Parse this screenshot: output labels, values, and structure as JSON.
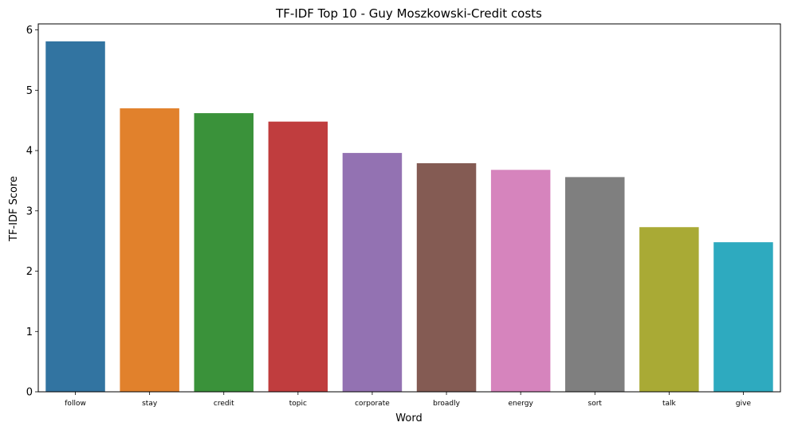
{
  "chart_data": {
    "type": "bar",
    "title": "TF-IDF Top 10 - Guy Moszkowski-Credit costs",
    "xlabel": "Word",
    "ylabel": "TF-IDF Score",
    "categories": [
      "follow",
      "stay",
      "credit",
      "topic",
      "corporate",
      "broadly",
      "energy",
      "sort",
      "talk",
      "give"
    ],
    "values": [
      5.81,
      4.7,
      4.62,
      4.48,
      3.96,
      3.79,
      3.68,
      3.56,
      2.73,
      2.48
    ],
    "colors": [
      "#3274a1",
      "#e1812c",
      "#3a923a",
      "#c03d3e",
      "#9372b2",
      "#845b53",
      "#d684bd",
      "#7f7f7f",
      "#a9aa35",
      "#2eaabf"
    ],
    "ylim": [
      0,
      6.1
    ],
    "yticks": [
      0,
      1,
      2,
      3,
      4,
      5,
      6
    ],
    "grid": false,
    "legend": "none"
  }
}
